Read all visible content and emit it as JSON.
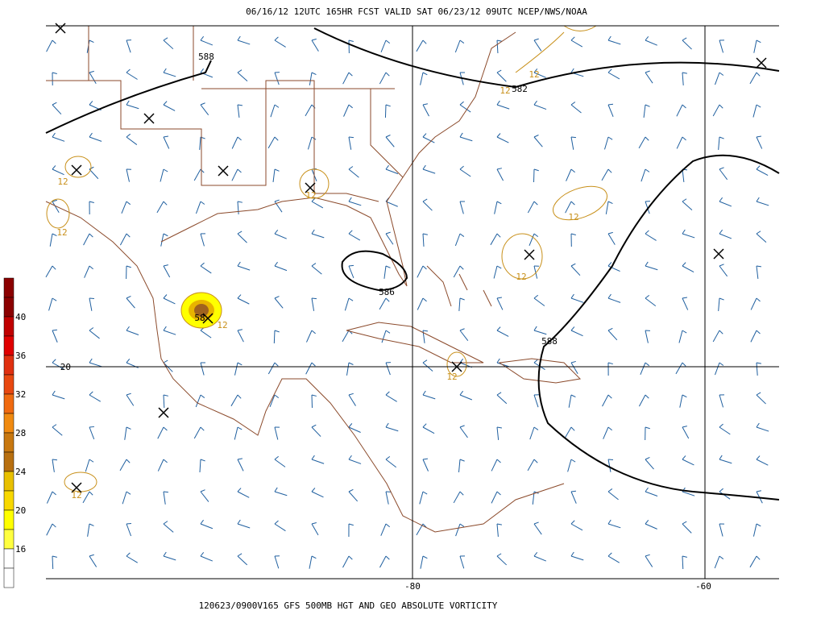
{
  "header": {
    "title": "06/16/12 12UTC  165HR  FCST VALID SAT 06/23/12 09UTC  NCEP/NWS/NOAA"
  },
  "footer": {
    "caption": "120623/0900V165 GFS 500MB HGT AND GEO ABSOLUTE VORTICITY"
  },
  "colorbar": {
    "labels": [
      "40",
      "36",
      "32",
      "28",
      "24",
      "20",
      "16"
    ]
  },
  "grid_labels": {
    "latitude": [
      "20"
    ],
    "longitude": [
      "-80",
      "-60"
    ]
  },
  "height_contour_labels": [
    "588",
    "582",
    "586",
    "588",
    "58"
  ],
  "vorticity_contour_labels": [
    "12",
    "12",
    "12",
    "12",
    "12",
    "12",
    "12",
    "12",
    "12",
    "12"
  ]
}
